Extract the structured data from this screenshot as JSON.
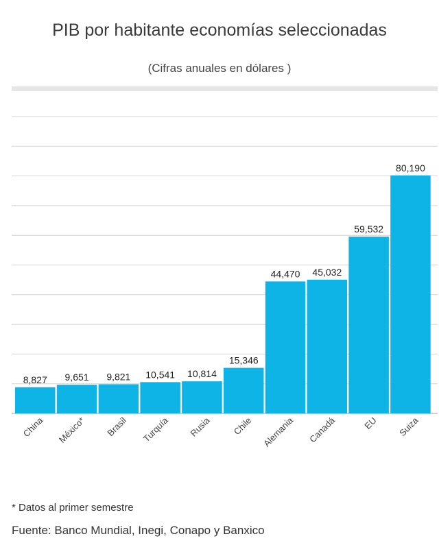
{
  "header": {
    "title": "PIB por habitante economías seleccionadas",
    "subtitle": "(Cifras anuales en dólares )"
  },
  "chart_data": {
    "type": "bar",
    "categories": [
      "China",
      "México*",
      "Brasil",
      "Turquía",
      "Rusia",
      "Chile",
      "Alemania",
      "Canadá",
      "EU",
      "Suiza"
    ],
    "values": [
      8827,
      9651,
      9821,
      10541,
      10814,
      15346,
      44470,
      45032,
      59532,
      80190
    ],
    "data_labels": [
      "8,827",
      "9,651",
      "9,821",
      "10,541",
      "10,814",
      "15,346",
      "44,470",
      "45,032",
      "59,532",
      "80,190"
    ],
    "ylim": [
      0,
      100000
    ],
    "grid": true,
    "bar_color": "#0fb4e6",
    "xlabel": "",
    "ylabel": ""
  },
  "footer": {
    "footnote": "* Datos al primer semestre",
    "source": "Fuente: Banco Mundial, Inegi,  Conapo y Banxico"
  }
}
